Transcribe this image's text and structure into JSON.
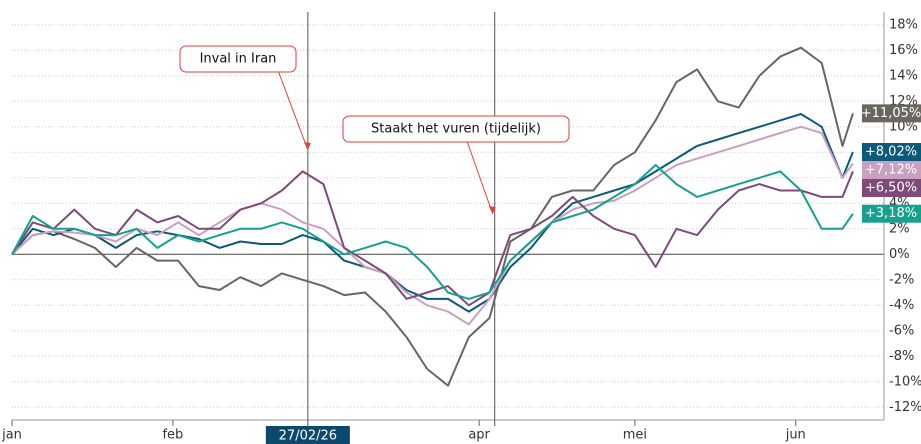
{
  "chart_data": {
    "type": "line",
    "x": [
      0,
      4,
      8,
      12,
      16,
      20,
      24,
      28,
      32,
      36,
      40,
      44,
      48,
      52,
      56,
      60,
      64,
      68,
      72,
      76,
      80,
      84,
      88,
      92,
      96,
      100,
      104,
      108,
      112,
      116,
      120,
      124,
      128,
      132,
      136,
      140,
      144,
      148,
      152,
      156,
      160,
      162
    ],
    "series": [
      {
        "color": "#6b6560",
        "values": [
          0,
          1.5,
          1.8,
          1.2,
          0.5,
          -1,
          0.5,
          -0.5,
          -0.5,
          -2.5,
          -2.8,
          -1.8,
          -2.5,
          -1.5,
          -2,
          -2.5,
          -3.2,
          -3,
          -4.5,
          -6.5,
          -9,
          -10.3,
          -6.5,
          -5,
          1,
          2,
          4.5,
          5,
          5,
          7,
          8,
          10.5,
          13.5,
          14.5,
          12,
          11.5,
          14,
          15.5,
          16.2,
          15,
          8.5,
          11.05
        ],
        "value_labels": [
          "+11,05%"
        ]
      },
      {
        "color": "#0b5a7a",
        "values": [
          0,
          2,
          1.5,
          2,
          1.5,
          0.5,
          1.5,
          1.8,
          1.5,
          1.2,
          0.5,
          1,
          0.8,
          0.8,
          1.5,
          1,
          -0.5,
          -1,
          -1.5,
          -2.8,
          -3.5,
          -3.5,
          -4.5,
          -3.5,
          -1,
          0.5,
          2.5,
          4,
          4.5,
          5,
          5.5,
          6.5,
          7.5,
          8.5,
          9,
          9.5,
          10,
          10.5,
          11,
          10,
          6,
          8.02
        ],
        "value_labels": [
          "+8,02%"
        ]
      },
      {
        "color": "#c9a0c0",
        "values": [
          0,
          1.5,
          1.8,
          1.7,
          1.5,
          1,
          2,
          1.5,
          2.5,
          1.5,
          2.5,
          3.5,
          4,
          3.5,
          2.5,
          2,
          0.5,
          -1,
          -1.5,
          -3,
          -4,
          -4.5,
          -5.5,
          -3.5,
          -0.5,
          1,
          2.5,
          3.5,
          4,
          4.2,
          5,
          6,
          7,
          7.5,
          8,
          8.5,
          9,
          9.5,
          10,
          9.5,
          6,
          7.12
        ],
        "value_labels": [
          "+7,12%"
        ]
      },
      {
        "color": "#7d4a7a",
        "values": [
          0,
          2.5,
          2,
          3.5,
          2,
          1.5,
          3.5,
          2.5,
          3,
          2,
          2,
          3.5,
          4,
          5,
          6.5,
          5.5,
          0.5,
          -0.5,
          -1.5,
          -3.5,
          -3,
          -2.5,
          -4,
          -3,
          1.5,
          2,
          3,
          4.5,
          3,
          2,
          1.5,
          -1,
          2,
          1.5,
          3.5,
          5,
          5.5,
          5,
          5,
          4.5,
          4.5,
          6.5
        ],
        "value_labels": [
          "+6,50%"
        ]
      },
      {
        "color": "#16a090",
        "values": [
          0,
          3,
          2,
          2,
          1.5,
          1.5,
          2,
          0.5,
          1.5,
          1,
          1.5,
          2,
          2,
          2.5,
          2,
          1,
          0,
          0.5,
          1,
          0.5,
          -1,
          -3,
          -3.5,
          -3,
          -0.5,
          1,
          2.5,
          3,
          3.5,
          4.5,
          5.5,
          7,
          5.5,
          4.5,
          5,
          5.5,
          6,
          6.5,
          5,
          2,
          2,
          3.18
        ],
        "value_labels": [
          "+3,18%"
        ]
      }
    ],
    "xlim": [
      0,
      168
    ],
    "xticks": [
      {
        "value": 0,
        "label": "jan"
      },
      {
        "value": 31,
        "label": "feb"
      },
      {
        "value": 90,
        "label": "apr"
      },
      {
        "value": 120,
        "label": "mei"
      },
      {
        "value": 151,
        "label": "jun"
      }
    ],
    "ylim": [
      -13,
      19
    ],
    "yticks": [
      {
        "value": 18,
        "label": "18%"
      },
      {
        "value": 16,
        "label": "16%"
      },
      {
        "value": 14,
        "label": "14%"
      },
      {
        "value": 12,
        "label": "12%"
      },
      {
        "value": 10,
        "label": "10%"
      },
      {
        "value": 8,
        "label": "8%"
      },
      {
        "value": 6,
        "label": "6%"
      },
      {
        "value": 4,
        "label": "4%"
      },
      {
        "value": 2,
        "label": "2%"
      },
      {
        "value": 0,
        "label": "0%"
      },
      {
        "value": -2,
        "label": "-2%"
      },
      {
        "value": -4,
        "label": "-4%"
      },
      {
        "value": -6,
        "label": "-6%"
      },
      {
        "value": -8,
        "label": "-8%"
      },
      {
        "value": -10,
        "label": "-10%"
      },
      {
        "value": -12,
        "label": "-12%"
      }
    ],
    "grid": true,
    "events": [
      {
        "x": 57,
        "label": "27/02/26"
      },
      {
        "x": 93
      }
    ],
    "annotations": [
      {
        "text": "Inval in Iran"
      },
      {
        "text": "Staakt het vuren (tijdelijk)"
      }
    ]
  }
}
